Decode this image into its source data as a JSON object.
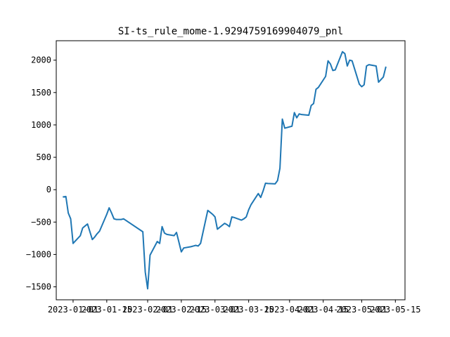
{
  "chart_data": {
    "type": "line",
    "title": "SI-ts_rule_mome-1.9294759169904079_pnl",
    "xlabel": "",
    "ylabel": "",
    "grid": false,
    "xlim": [
      "2022-12-25",
      "2023-05-19"
    ],
    "ylim": [
      -1700,
      2300
    ],
    "x_ticks": [
      "2023-01-01",
      "2023-01-15",
      "2023-02-01",
      "2023-02-15",
      "2023-03-01",
      "2023-03-15",
      "2023-04-01",
      "2023-04-15",
      "2023-05-01",
      "2023-05-15"
    ],
    "x_tick_labels": [
      "2023-01-01",
      "2023-01-15",
      "2023-02-01",
      "2023-02-15",
      "2023-03-01",
      "2023-03-15",
      "2023-04-01",
      "2023-04-15",
      "2023-05-01",
      "2023-05-15"
    ],
    "y_ticks": [
      -1500,
      -1000,
      -500,
      0,
      500,
      1000,
      1500,
      2000
    ],
    "y_tick_labels": [
      "−1500",
      "−1000",
      "−500",
      "0",
      "500",
      "1000",
      "1500",
      "2000"
    ],
    "series": [
      {
        "color": "#1f77b4",
        "x": [
          "2022-12-28",
          "2022-12-29",
          "2022-12-30",
          "2022-12-31",
          "2023-01-01",
          "2023-01-04",
          "2023-01-05",
          "2023-01-06",
          "2023-01-07",
          "2023-01-09",
          "2023-01-10",
          "2023-01-11",
          "2023-01-12",
          "2023-01-15",
          "2023-01-16",
          "2023-01-17",
          "2023-01-18",
          "2023-01-19",
          "2023-01-21",
          "2023-01-22",
          "2023-01-30",
          "2023-01-31",
          "2023-02-01",
          "2023-02-02",
          "2023-02-05",
          "2023-02-06",
          "2023-02-07",
          "2023-02-08",
          "2023-02-09",
          "2023-02-12",
          "2023-02-13",
          "2023-02-14",
          "2023-02-15",
          "2023-02-16",
          "2023-02-19",
          "2023-02-20",
          "2023-02-21",
          "2023-02-22",
          "2023-02-23",
          "2023-02-26",
          "2023-02-27",
          "2023-02-28",
          "2023-03-01",
          "2023-03-02",
          "2023-03-05",
          "2023-03-06",
          "2023-03-07",
          "2023-03-08",
          "2023-03-09",
          "2023-03-12",
          "2023-03-13",
          "2023-03-14",
          "2023-03-15",
          "2023-03-16",
          "2023-03-19",
          "2023-03-20",
          "2023-03-21",
          "2023-03-22",
          "2023-03-23",
          "2023-03-26",
          "2023-03-27",
          "2023-03-28",
          "2023-03-29",
          "2023-03-30",
          "2023-04-02",
          "2023-04-03",
          "2023-04-04",
          "2023-04-05",
          "2023-04-06",
          "2023-04-09",
          "2023-04-10",
          "2023-04-11",
          "2023-04-12",
          "2023-04-13",
          "2023-04-16",
          "2023-04-17",
          "2023-04-18",
          "2023-04-19",
          "2023-04-20",
          "2023-04-23",
          "2023-04-24",
          "2023-04-25",
          "2023-04-26",
          "2023-04-27",
          "2023-04-30",
          "2023-05-01",
          "2023-05-02",
          "2023-05-03",
          "2023-05-04",
          "2023-05-07",
          "2023-05-08",
          "2023-05-10",
          "2023-05-11"
        ],
        "y": [
          -110,
          -105,
          -360,
          -450,
          -830,
          -710,
          -590,
          -560,
          -530,
          -770,
          -730,
          -680,
          -640,
          -380,
          -280,
          -360,
          -450,
          -460,
          -460,
          -450,
          -650,
          -1270,
          -1530,
          -1010,
          -800,
          -830,
          -570,
          -670,
          -690,
          -710,
          -660,
          -810,
          -960,
          -900,
          -880,
          -870,
          -860,
          -870,
          -830,
          -320,
          -350,
          -380,
          -420,
          -610,
          -520,
          -540,
          -570,
          -420,
          -430,
          -470,
          -450,
          -420,
          -310,
          -230,
          -60,
          -120,
          -20,
          100,
          95,
          90,
          140,
          330,
          1090,
          950,
          980,
          1190,
          1110,
          1170,
          1160,
          1150,
          1300,
          1330,
          1550,
          1580,
          1750,
          1990,
          1940,
          1840,
          1850,
          2130,
          2100,
          1910,
          2000,
          1990,
          1630,
          1590,
          1620,
          1910,
          1930,
          1910,
          1660,
          1740,
          1890
        ]
      }
    ]
  }
}
